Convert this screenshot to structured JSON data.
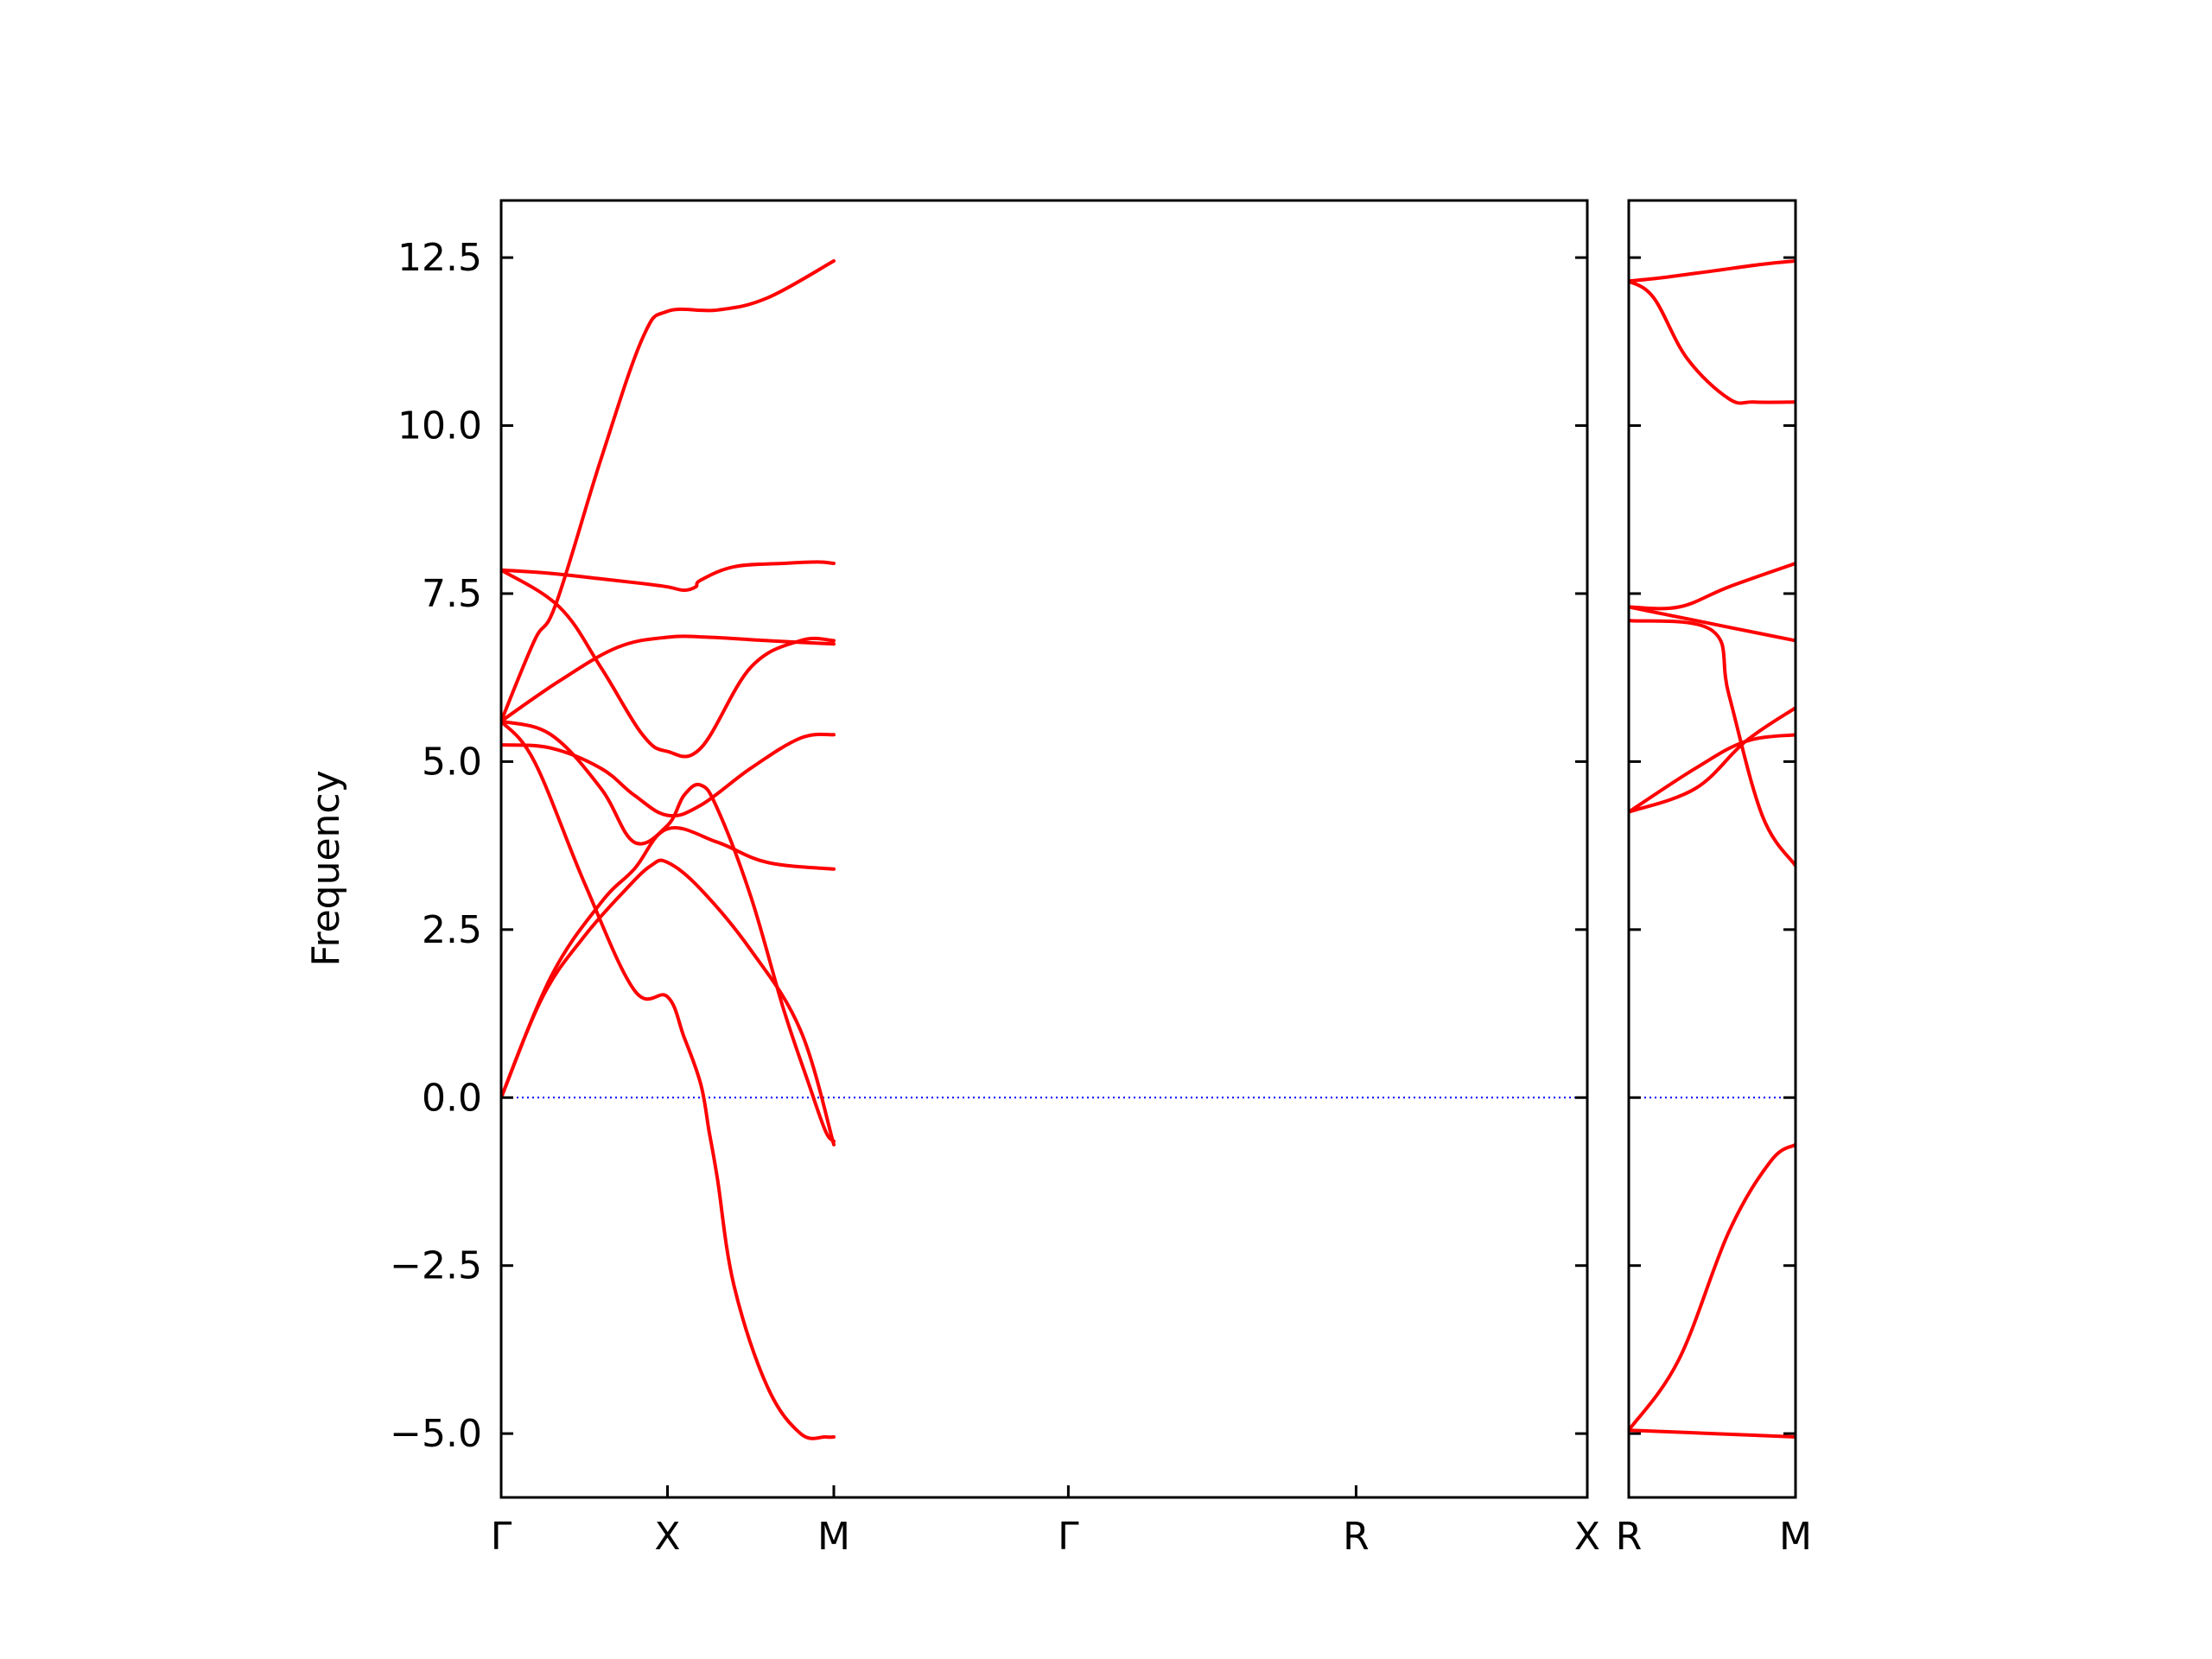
{
  "figure": {
    "ylabel": "Frequency"
  },
  "chart_data": [
    {
      "type": "line",
      "panel": "left",
      "ylabel": "Frequency",
      "ylim": [
        -5.95,
        13.35
      ],
      "xlim": [
        0,
        6.53
      ],
      "x_ticks": [
        {
          "label": "Γ",
          "x": 0
        },
        {
          "label": "X",
          "x": 1
        },
        {
          "label": "M",
          "x": 2
        },
        {
          "label": "Γ",
          "x": 3.41
        },
        {
          "label": "R",
          "x": 5.14
        },
        {
          "label": "X",
          "x": 6.53
        }
      ],
      "y_ticks": [
        "−5.0",
        "−2.5",
        "0.0",
        "2.5",
        "5.0",
        "7.5",
        "10.0",
        "12.5"
      ],
      "y_tick_values": [
        -5,
        -2.5,
        0,
        2.5,
        5,
        7.5,
        10,
        12.5
      ],
      "zero_line": {
        "y": 0,
        "color": "#0000ff",
        "style": "dotted"
      },
      "line_color": "#ff0000",
      "series": [
        {
          "x": [
            0,
            0.3,
            0.6,
            0.85,
            1.0,
            1.1,
            1.17,
            1.2,
            1.4,
            1.7,
            1.9,
            2.0
          ],
          "y": [
            7.85,
            7.8,
            7.72,
            7.65,
            7.6,
            7.55,
            7.6,
            7.7,
            7.9,
            7.95,
            7.97,
            7.95
          ]
        },
        {
          "x": [
            0,
            0.35,
            0.6,
            0.85,
            1.0,
            1.2,
            1.5,
            1.8,
            2.0
          ],
          "y": [
            7.85,
            7.3,
            6.4,
            5.4,
            5.15,
            5.2,
            6.4,
            6.8,
            6.8
          ]
        },
        {
          "x": [
            0,
            0.2,
            0.33,
            0.6,
            0.85,
            1.0,
            1.3,
            1.6,
            2.0
          ],
          "y": [
            5.6,
            6.8,
            7.35,
            9.5,
            11.3,
            11.7,
            11.72,
            11.9,
            12.45
          ]
        },
        {
          "x": [
            0,
            0.35,
            0.7,
            1.0,
            1.25,
            1.6,
            2.0
          ],
          "y": [
            5.6,
            6.2,
            6.7,
            6.85,
            6.85,
            6.8,
            6.75
          ]
        },
        {
          "x": [
            0,
            0.3,
            0.6,
            0.8,
            1.0,
            1.2,
            1.5,
            1.8,
            2.0
          ],
          "y": [
            5.25,
            5.2,
            4.9,
            4.5,
            4.2,
            4.35,
            4.9,
            5.35,
            5.4
          ]
        },
        {
          "x": [
            0,
            0.3,
            0.6,
            0.8,
            1.0,
            1.1,
            1.2,
            1.3,
            1.5,
            1.7,
            1.85,
            1.95,
            2.0
          ],
          "y": [
            5.6,
            5.4,
            4.6,
            3.8,
            4.05,
            4.5,
            4.65,
            4.3,
            3.0,
            1.3,
            0.2,
            -0.5,
            -0.65
          ]
        },
        {
          "x": [
            0,
            0.25,
            0.5,
            0.75,
            0.9,
            1.0,
            1.2,
            1.5,
            1.8,
            2.0
          ],
          "y": [
            0,
            1.5,
            2.4,
            3.1,
            3.45,
            3.5,
            3.1,
            2.2,
            1.0,
            -0.7
          ]
        },
        {
          "x": [
            0,
            0.2,
            0.5,
            0.8,
            1.0,
            1.1,
            1.2,
            1.25,
            1.3,
            1.4,
            1.6,
            1.8,
            1.95,
            2.0
          ],
          "y": [
            5.6,
            5.0,
            3.2,
            1.6,
            1.5,
            0.9,
            0.2,
            -0.5,
            -1.2,
            -2.8,
            -4.3,
            -5.0,
            -5.05,
            -5.05
          ]
        },
        {
          "x": [
            0,
            0.3,
            0.6,
            0.8,
            1.0,
            1.3,
            1.6,
            2.0
          ],
          "y": [
            0,
            1.8,
            2.9,
            3.4,
            4.0,
            3.8,
            3.5,
            3.4
          ]
        }
      ]
    },
    {
      "type": "line",
      "panel": "right",
      "ylim": [
        -5.95,
        13.35
      ],
      "xlim": [
        0,
        1
      ],
      "x_ticks": [
        {
          "label": "R",
          "x": 0
        },
        {
          "label": "M",
          "x": 1
        }
      ],
      "y_tick_values": [
        -5,
        -2.5,
        0,
        2.5,
        5,
        7.5,
        10,
        12.5
      ],
      "zero_line": {
        "y": 0,
        "color": "#0000ff",
        "style": "dotted"
      },
      "line_color": "#ff0000",
      "series": [
        {
          "x": [
            0,
            0.2,
            0.5,
            0.8,
            1.0
          ],
          "y": [
            12.15,
            12.2,
            12.3,
            12.4,
            12.45
          ]
        },
        {
          "x": [
            0,
            0.15,
            0.35,
            0.6,
            0.75,
            1.0
          ],
          "y": [
            12.15,
            11.9,
            11.0,
            10.4,
            10.35,
            10.35
          ]
        },
        {
          "x": [
            0,
            0.3,
            0.6,
            1.0
          ],
          "y": [
            7.3,
            7.3,
            7.6,
            7.95
          ]
        },
        {
          "x": [
            0,
            0.3,
            0.6,
            1.0
          ],
          "y": [
            7.3,
            7.15,
            7.0,
            6.8
          ]
        },
        {
          "x": [
            0,
            0.4,
            0.7,
            1.0
          ],
          "y": [
            4.25,
            4.6,
            5.3,
            5.8
          ]
        },
        {
          "x": [
            0,
            0.4,
            0.7,
            1.0
          ],
          "y": [
            4.25,
            4.9,
            5.3,
            5.4
          ]
        },
        {
          "x": [
            0,
            0.5,
            0.6,
            0.8,
            1.0
          ],
          "y": [
            7.1,
            6.95,
            6.0,
            4.2,
            3.45
          ]
        },
        {
          "x": [
            0,
            0.3,
            0.6,
            0.85,
            1.0
          ],
          "y": [
            -4.95,
            -3.9,
            -2.0,
            -0.95,
            -0.7
          ]
        },
        {
          "x": [
            0,
            0.5,
            1.0
          ],
          "y": [
            -4.95,
            -5.0,
            -5.05
          ]
        }
      ]
    }
  ]
}
